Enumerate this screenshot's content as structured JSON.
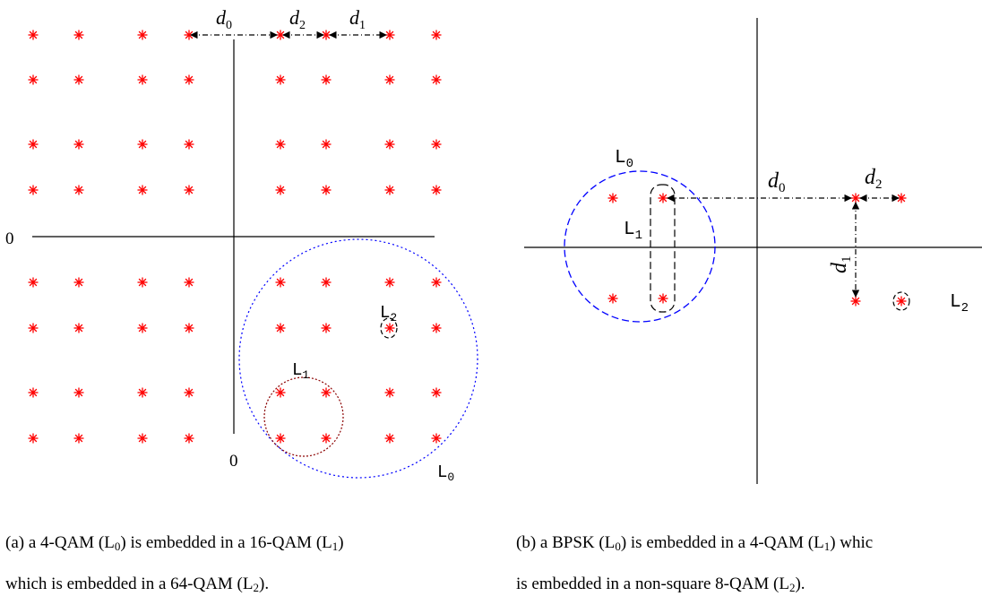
{
  "panel_a": {
    "labels": {
      "origin_left": "0",
      "origin_bottom": "0",
      "d0": "d",
      "d0_sub": "0",
      "d1": "d",
      "d1_sub": "1",
      "d2": "d",
      "d2_sub": "2",
      "L0": "L",
      "L0_sub": "0",
      "L1": "L",
      "L1_sub": "1",
      "L2": "L",
      "L2_sub": "2"
    },
    "caption": {
      "line1_pre": "(a) a 4-QAM (L",
      "line1_sub1": "0",
      "line1_mid": ") is embedded in a 16-QAM (L",
      "line1_sub2": "1",
      "line1_post": ")",
      "line2_pre": "which is embedded in a 64-QAM (L",
      "line2_sub": "2",
      "line2_post": ")."
    }
  },
  "panel_b": {
    "labels": {
      "d0": "d",
      "d0_sub": "0",
      "d1": "d",
      "d1_sub": "1",
      "d2": "d",
      "d2_sub": "2",
      "L0": "L",
      "L0_sub": "0",
      "L1": "L",
      "L1_sub": "1",
      "L2": "L",
      "L2_sub": "2"
    },
    "caption": {
      "line1_pre": "(b) a BPSK (L",
      "line1_sub1": "0",
      "line1_mid": ") is embedded in a 4-QAM (L",
      "line1_sub2": "1",
      "line1_post": ") whic",
      "line2_pre": "is embedded in a non-square 8-QAM (L",
      "line2_sub": "2",
      "line2_post": ")."
    }
  },
  "colors": {
    "point": "#ff0000",
    "axis": "#000000",
    "circle_L0": "#0000ff",
    "circle_L1_a": "#8b0000",
    "circle_small": "#000000"
  }
}
